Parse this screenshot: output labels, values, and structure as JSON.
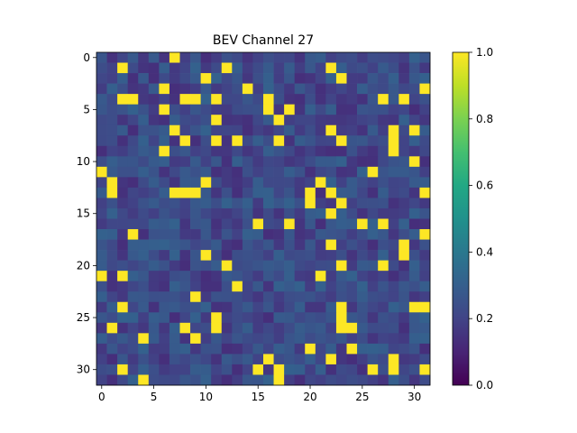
{
  "chart_data": {
    "type": "heatmap",
    "title": "BEV Channel 27",
    "xlabel": "",
    "ylabel": "",
    "rows": 32,
    "cols": 32,
    "x_ticks": [
      "0",
      "5",
      "10",
      "15",
      "20",
      "25",
      "30"
    ],
    "y_ticks": [
      "0",
      "5",
      "10",
      "15",
      "20",
      "25",
      "30"
    ],
    "colorbar": {
      "vmin": 0.0,
      "vmax": 1.0,
      "ticks": [
        "0.0",
        "0.2",
        "0.4",
        "0.6",
        "0.8",
        "1.0"
      ],
      "colormap": "viridis"
    },
    "background_value": 0.22,
    "high_cells": [
      [
        0,
        7
      ],
      [
        1,
        2
      ],
      [
        1,
        12
      ],
      [
        1,
        22
      ],
      [
        2,
        10
      ],
      [
        2,
        23
      ],
      [
        3,
        6
      ],
      [
        3,
        14
      ],
      [
        3,
        31
      ],
      [
        4,
        2
      ],
      [
        4,
        3
      ],
      [
        4,
        8
      ],
      [
        4,
        9
      ],
      [
        4,
        11
      ],
      [
        4,
        16
      ],
      [
        4,
        27
      ],
      [
        4,
        29
      ],
      [
        5,
        6
      ],
      [
        5,
        16
      ],
      [
        5,
        18
      ],
      [
        6,
        11
      ],
      [
        6,
        17
      ],
      [
        7,
        7
      ],
      [
        7,
        22
      ],
      [
        7,
        28
      ],
      [
        7,
        30
      ],
      [
        8,
        8
      ],
      [
        8,
        11
      ],
      [
        8,
        13
      ],
      [
        8,
        17
      ],
      [
        8,
        23
      ],
      [
        8,
        28
      ],
      [
        9,
        6
      ],
      [
        9,
        28
      ],
      [
        10,
        30
      ],
      [
        11,
        0
      ],
      [
        11,
        26
      ],
      [
        12,
        1
      ],
      [
        12,
        10
      ],
      [
        12,
        21
      ],
      [
        13,
        1
      ],
      [
        13,
        7
      ],
      [
        13,
        8
      ],
      [
        13,
        9
      ],
      [
        13,
        20
      ],
      [
        13,
        22
      ],
      [
        13,
        31
      ],
      [
        14,
        20
      ],
      [
        14,
        23
      ],
      [
        15,
        22
      ],
      [
        16,
        15
      ],
      [
        16,
        18
      ],
      [
        16,
        25
      ],
      [
        16,
        27
      ],
      [
        17,
        3
      ],
      [
        17,
        31
      ],
      [
        18,
        22
      ],
      [
        18,
        29
      ],
      [
        19,
        10
      ],
      [
        19,
        29
      ],
      [
        20,
        12
      ],
      [
        20,
        23
      ],
      [
        20,
        27
      ],
      [
        21,
        0
      ],
      [
        21,
        2
      ],
      [
        21,
        21
      ],
      [
        22,
        13
      ],
      [
        23,
        9
      ],
      [
        24,
        2
      ],
      [
        24,
        23
      ],
      [
        24,
        30
      ],
      [
        24,
        31
      ],
      [
        25,
        11
      ],
      [
        25,
        23
      ],
      [
        26,
        1
      ],
      [
        26,
        8
      ],
      [
        26,
        11
      ],
      [
        26,
        23
      ],
      [
        26,
        24
      ],
      [
        27,
        4
      ],
      [
        27,
        9
      ],
      [
        28,
        20
      ],
      [
        28,
        24
      ],
      [
        29,
        16
      ],
      [
        29,
        22
      ],
      [
        29,
        28
      ],
      [
        30,
        2
      ],
      [
        30,
        15
      ],
      [
        30,
        17
      ],
      [
        30,
        26
      ],
      [
        30,
        28
      ],
      [
        30,
        31
      ],
      [
        31,
        4
      ],
      [
        31,
        17
      ]
    ]
  }
}
